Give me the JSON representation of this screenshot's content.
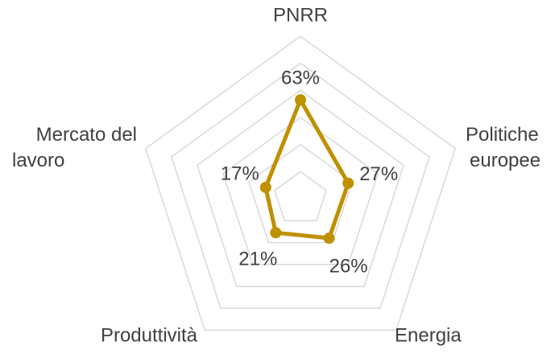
{
  "chart_data": {
    "type": "radar",
    "categories": [
      "PNRR",
      "Politiche europee",
      "Energia",
      "Produttività",
      "Mercato del lavoro"
    ],
    "series": [
      {
        "color": "#bf9000",
        "values": [
          63,
          27,
          26,
          21,
          17
        ],
        "value_labels": [
          "63%",
          "27%",
          "26%",
          "21%",
          "17%"
        ]
      }
    ],
    "ylim": [
      -10,
      110
    ],
    "yticks": [
      10,
      30,
      50,
      70,
      90,
      110
    ],
    "grid": true
  }
}
